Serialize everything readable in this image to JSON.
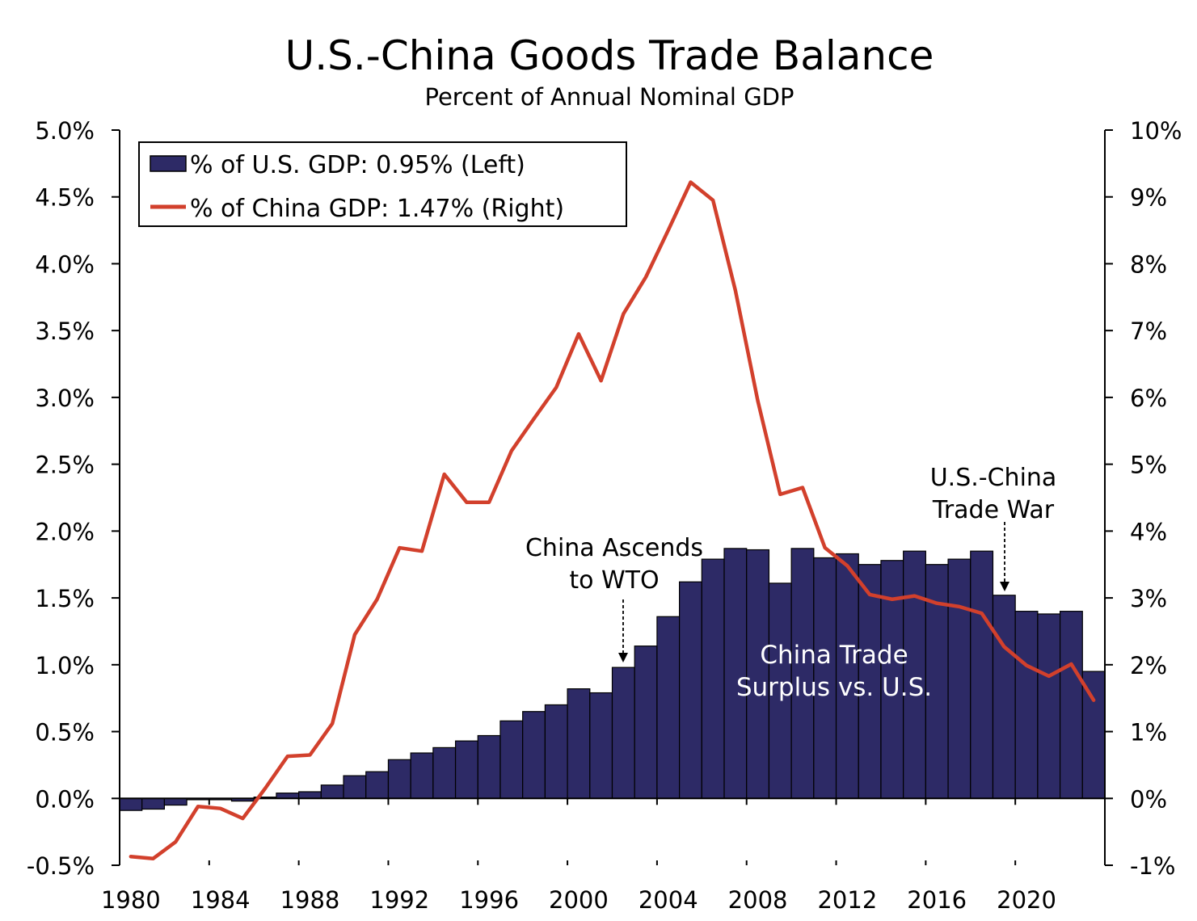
{
  "chart_data": {
    "type": "bar",
    "title": "U.S.-China Goods Trade Balance",
    "subtitle": "Percent of Annual Nominal GDP",
    "x": [
      1980,
      1981,
      1982,
      1983,
      1984,
      1985,
      1986,
      1987,
      1988,
      1989,
      1990,
      1991,
      1992,
      1993,
      1994,
      1995,
      1996,
      1997,
      1998,
      1999,
      2000,
      2001,
      2002,
      2003,
      2004,
      2005,
      2006,
      2007,
      2008,
      2009,
      2010,
      2011,
      2012,
      2013,
      2014,
      2015,
      2016,
      2017,
      2018,
      2019,
      2020,
      2021,
      2022,
      2023
    ],
    "x_tick_labels": [
      "1980",
      "1984",
      "1988",
      "1992",
      "1996",
      "2000",
      "2004",
      "2008",
      "2012",
      "2016",
      "2020"
    ],
    "left_axis": {
      "ylim": [
        -0.5,
        5.0
      ],
      "tick_labels": [
        "5.0%",
        "4.5%",
        "4.0%",
        "3.5%",
        "3.0%",
        "2.5%",
        "2.0%",
        "1.5%",
        "1.0%",
        "0.5%",
        "0.0%",
        "-0.5%"
      ]
    },
    "right_axis": {
      "ylim": [
        -1,
        10
      ],
      "tick_labels": [
        "10%",
        "9%",
        "8%",
        "7%",
        "6%",
        "5%",
        "4%",
        "3%",
        "2%",
        "1%",
        "0%",
        "-1%"
      ]
    },
    "series": [
      {
        "name": "% of U.S. GDP: 0.95% (Left)",
        "type": "bar",
        "axis": "left",
        "color": "#2d2a66",
        "values": [
          -0.09,
          -0.08,
          -0.05,
          -0.01,
          -0.01,
          -0.02,
          0.01,
          0.04,
          0.05,
          0.1,
          0.17,
          0.2,
          0.29,
          0.34,
          0.38,
          0.43,
          0.47,
          0.58,
          0.65,
          0.7,
          0.82,
          0.79,
          0.98,
          1.14,
          1.36,
          1.62,
          1.79,
          1.87,
          1.86,
          1.61,
          1.87,
          1.8,
          1.83,
          1.75,
          1.78,
          1.85,
          1.75,
          1.79,
          1.85,
          1.52,
          1.4,
          1.38,
          1.4,
          0.95
        ]
      },
      {
        "name": "% of China GDP: 1.47% (Right)",
        "type": "line",
        "axis": "right",
        "color": "#d2402c",
        "values": [
          -0.87,
          -0.9,
          -0.65,
          -0.12,
          -0.15,
          -0.3,
          0.15,
          0.63,
          0.65,
          1.12,
          2.45,
          2.98,
          3.75,
          3.7,
          4.85,
          4.43,
          4.43,
          5.2,
          5.68,
          6.15,
          6.95,
          6.25,
          7.25,
          7.8,
          8.5,
          9.22,
          8.95,
          7.6,
          5.95,
          4.55,
          4.65,
          3.75,
          3.48,
          3.05,
          2.98,
          3.03,
          2.92,
          2.87,
          2.77,
          2.27,
          1.99,
          1.83,
          2.01,
          1.47
        ]
      }
    ],
    "legend": {
      "position": "top-left",
      "items": [
        "% of U.S. GDP: 0.95% (Left)",
        "% of China GDP: 1.47% (Right)"
      ]
    },
    "annotations": [
      {
        "text_lines": [
          "China Ascends",
          "to WTO"
        ],
        "year": 2002
      },
      {
        "text_lines": [
          "U.S.-China",
          "Trade War"
        ],
        "year": 2019
      },
      {
        "text_lines": [
          "China Trade",
          "Surplus vs. U.S."
        ]
      }
    ],
    "grid": false
  },
  "colors": {
    "bar": "#2d2a66",
    "line": "#d2402c",
    "axis": "#000000"
  }
}
